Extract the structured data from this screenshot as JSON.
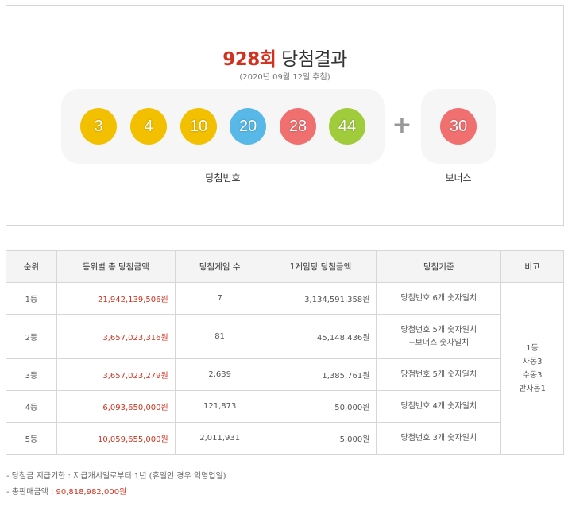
{
  "result": {
    "round": "928회",
    "title_suffix": "당첨결과",
    "draw_date": "(2020년 09월 12일 추첨)",
    "winning_label": "당첨번호",
    "bonus_label": "보너스",
    "plus": "+",
    "balls": [
      {
        "num": "3",
        "color": "#f3c000"
      },
      {
        "num": "4",
        "color": "#f3c000"
      },
      {
        "num": "10",
        "color": "#f3c000"
      },
      {
        "num": "20",
        "color": "#58b9e8"
      },
      {
        "num": "28",
        "color": "#f07070"
      },
      {
        "num": "44",
        "color": "#a0cc3c"
      }
    ],
    "bonus": {
      "num": "30",
      "color": "#f07070"
    }
  },
  "table": {
    "headers": [
      "순위",
      "등위별 총 당첨금액",
      "당첨게임 수",
      "1게임당 당첨금액",
      "당첨기준",
      "비고"
    ],
    "rows": [
      {
        "rank": "1등",
        "total": "21,942,139,506원",
        "games": "7",
        "per_game": "3,134,591,358원",
        "crit_a": "당첨번호 ",
        "crit_b": "6개",
        "crit_c": " 숫자일치",
        "crit_d": ""
      },
      {
        "rank": "2등",
        "total": "3,657,023,316원",
        "games": "81",
        "per_game": "45,148,436원",
        "crit_a": "당첨번호 ",
        "crit_b": "5개",
        "crit_c": " 숫자일치",
        "crit_d": "+보너스 숫자일치"
      },
      {
        "rank": "3등",
        "total": "3,657,023,279원",
        "games": "2,639",
        "per_game": "1,385,761원",
        "crit_a": "당첨번호 ",
        "crit_b": "5개",
        "crit_c": " 숫자일치",
        "crit_d": ""
      },
      {
        "rank": "4등",
        "total": "6,093,650,000원",
        "games": "121,873",
        "per_game": "50,000원",
        "crit_a": "당첨번호 ",
        "crit_b": "4개",
        "crit_c": " 숫자일치",
        "crit_d": ""
      },
      {
        "rank": "5등",
        "total": "10,059,655,000원",
        "games": "2,011,931",
        "per_game": "5,000원",
        "crit_a": "당첨번호 ",
        "crit_b": "3개",
        "crit_c": " 숫자일치",
        "crit_d": ""
      }
    ],
    "note_lines": [
      "1등",
      "자동3",
      "수동3",
      "반자동1"
    ]
  },
  "footnotes": {
    "deadline_label": "당첨금 지급기한 : 지급개시일로부터 1년 (휴일인 경우 익영업일)",
    "sales_label": "총판매금액 : ",
    "sales_value": "90,818,982,000원",
    "bullet": "-"
  },
  "colors": {
    "accent": "#d1321f",
    "border": "#d6d6d6",
    "panel": "#f6f6f6"
  }
}
